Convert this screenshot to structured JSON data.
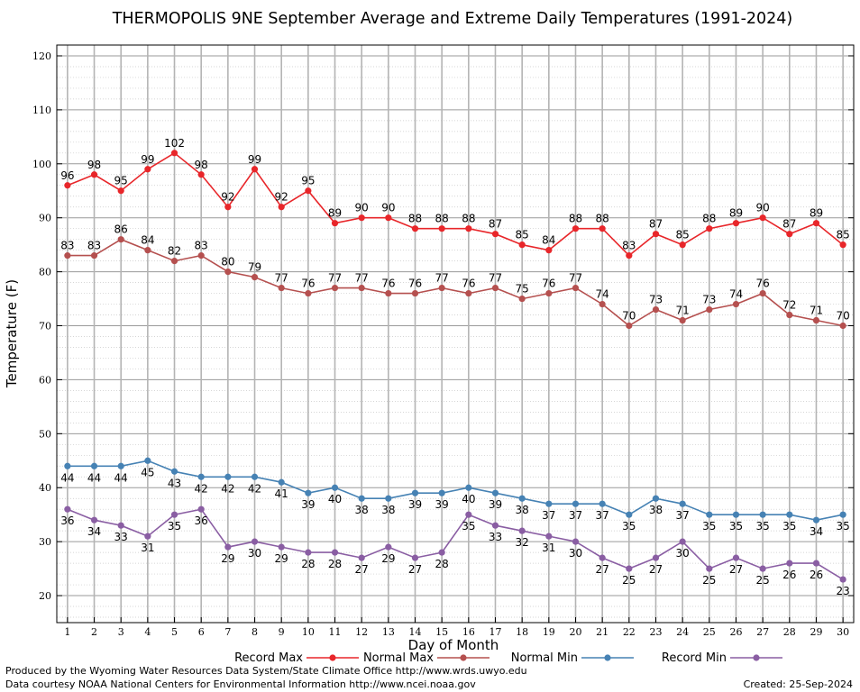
{
  "chart_data": {
    "type": "line",
    "title": "THERMOPOLIS 9NE September Average and Extreme Daily Temperatures (1991-2024)",
    "xlabel": "Day of Month",
    "ylabel": "Temperature (F)",
    "xlim": [
      1,
      30
    ],
    "ylim": [
      15,
      122
    ],
    "yticks": [
      20,
      30,
      40,
      50,
      60,
      70,
      80,
      90,
      100,
      110,
      120
    ],
    "x": [
      1,
      2,
      3,
      4,
      5,
      6,
      7,
      8,
      9,
      10,
      11,
      12,
      13,
      14,
      15,
      16,
      17,
      18,
      19,
      20,
      21,
      22,
      23,
      24,
      25,
      26,
      27,
      28,
      29,
      30
    ],
    "grid": true,
    "legend_position": "bottom",
    "series": [
      {
        "name": "Record Max",
        "color": "#e8262a",
        "values": [
          96,
          98,
          95,
          99,
          102,
          98,
          92,
          99,
          92,
          95,
          89,
          90,
          90,
          88,
          88,
          88,
          87,
          85,
          84,
          88,
          88,
          83,
          87,
          85,
          88,
          89,
          90,
          87,
          89,
          85
        ]
      },
      {
        "name": "Normal Max",
        "color": "#b5504f",
        "values": [
          83,
          83,
          86,
          84,
          82,
          83,
          80,
          79,
          77,
          76,
          77,
          77,
          76,
          76,
          77,
          76,
          77,
          75,
          76,
          77,
          74,
          70,
          73,
          71,
          73,
          74,
          76,
          72,
          71,
          70
        ]
      },
      {
        "name": "Normal Min",
        "color": "#4682b4",
        "values": [
          44,
          44,
          44,
          45,
          43,
          42,
          42,
          42,
          41,
          39,
          40,
          38,
          38,
          39,
          39,
          40,
          39,
          38,
          37,
          37,
          37,
          35,
          38,
          37,
          35,
          35,
          35,
          35,
          34,
          35
        ]
      },
      {
        "name": "Record Min",
        "color": "#8a5ea3",
        "values": [
          36,
          34,
          33,
          31,
          35,
          36,
          29,
          30,
          29,
          28,
          28,
          27,
          29,
          27,
          28,
          35,
          33,
          32,
          31,
          30,
          27,
          25,
          27,
          30,
          25,
          27,
          25,
          26,
          26,
          23
        ]
      }
    ]
  },
  "footer": {
    "line1": "Produced by the Wyoming Water Resources Data System/State Climate Office http://www.wrds.uwyo.edu",
    "line2": "Data courtesy NOAA National Centers for Environmental Information http://www.ncei.noaa.gov",
    "created": "Created:  25-Sep-2024"
  }
}
